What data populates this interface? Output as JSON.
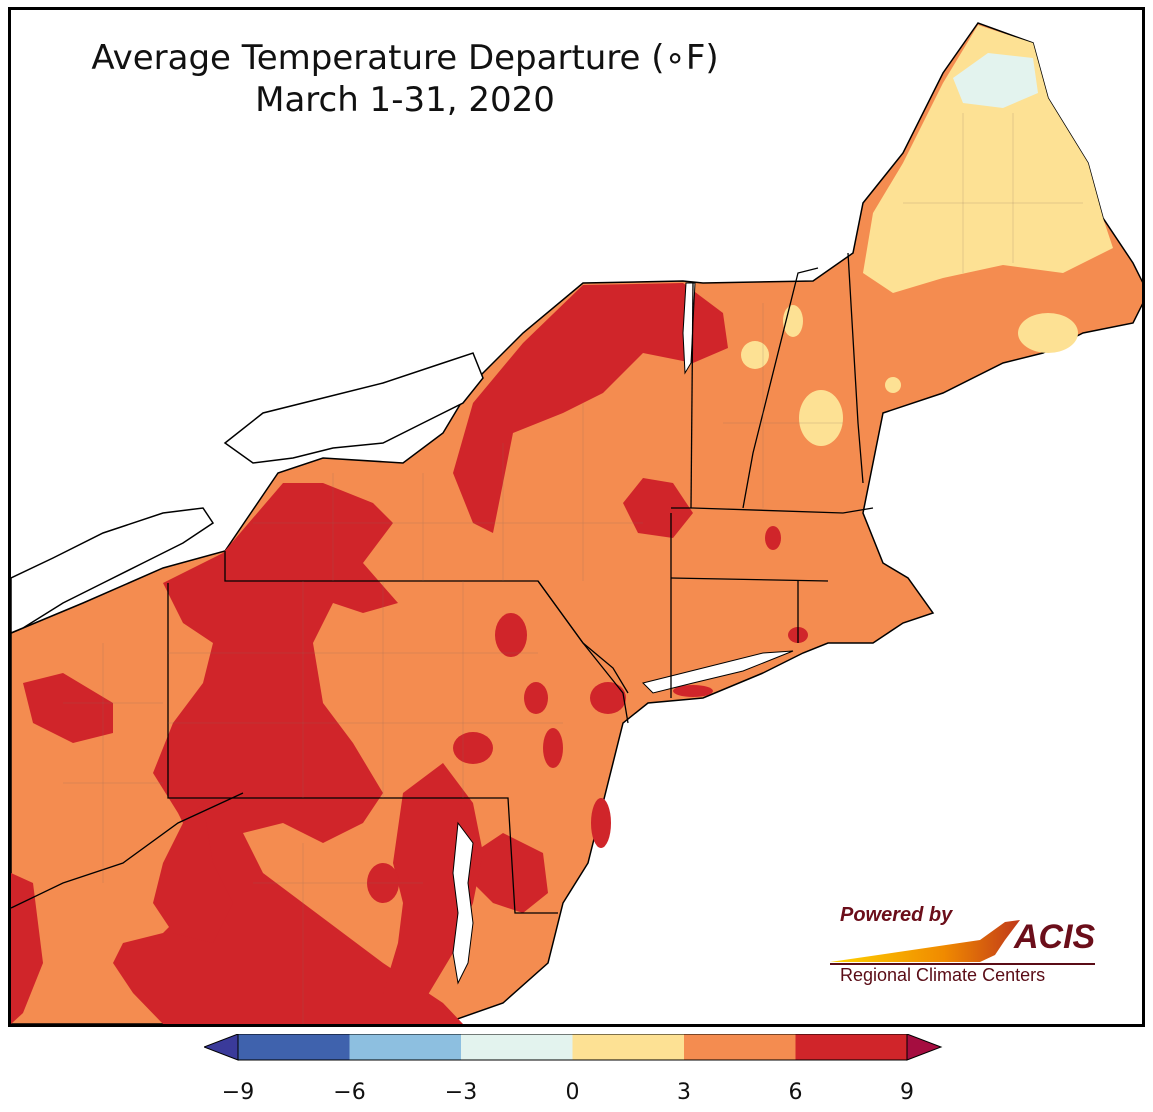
{
  "title": {
    "line1": "Average Temperature Departure (∘F)",
    "line2": "March 1-31, 2020"
  },
  "map": {
    "region": "Northeast United States",
    "colors": {
      "band_neg9_neg6": "#3f62ad",
      "band_neg6_neg3": "#8dbfe0",
      "band_neg3_0": "#e3f3ee",
      "band_0_3": "#fde194",
      "band_3_6": "#f48c50",
      "band_6_9": "#d0252a",
      "over_9": "#a50d40",
      "under_neg9": "#3a3a9a",
      "water": "#ffffff",
      "borders": "#000000"
    }
  },
  "colorbar": {
    "ticks": [
      "−9",
      "−6",
      "−3",
      "0",
      "3",
      "6",
      "9"
    ],
    "bands": [
      "#3f62ad",
      "#8dbfe0",
      "#e3f3ee",
      "#fde194",
      "#f48c50",
      "#d0252a"
    ],
    "extend_low": "#3a3a9a",
    "extend_high": "#a50d40"
  },
  "logo": {
    "powered_by": "Powered by",
    "name": "ACIS",
    "subtitle": "Regional Climate Centers"
  }
}
